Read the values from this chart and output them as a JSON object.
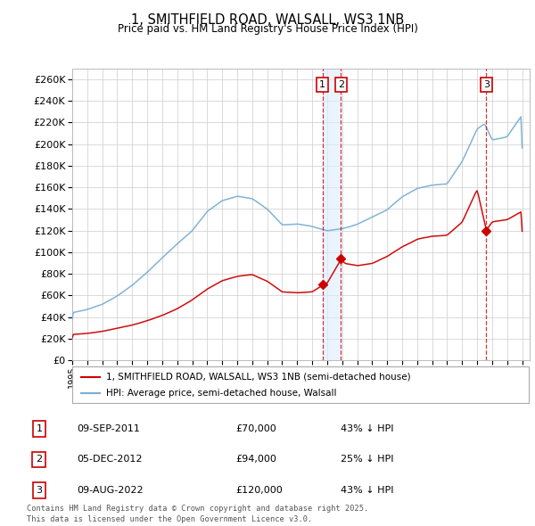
{
  "title": "1, SMITHFIELD ROAD, WALSALL, WS3 1NB",
  "subtitle": "Price paid vs. HM Land Registry's House Price Index (HPI)",
  "ylim": [
    0,
    270000
  ],
  "yticks": [
    0,
    20000,
    40000,
    60000,
    80000,
    100000,
    120000,
    140000,
    160000,
    180000,
    200000,
    220000,
    240000,
    260000
  ],
  "hpi_color": "#7bafd4",
  "sold_color": "#cc0000",
  "grid_color": "#cccccc",
  "background_color": "#ffffff",
  "legend_entry1": "1, SMITHFIELD ROAD, WALSALL, WS3 1NB (semi-detached house)",
  "legend_entry2": "HPI: Average price, semi-detached house, Walsall",
  "transactions": [
    {
      "num": 1,
      "date": "09-SEP-2011",
      "price": 70000,
      "pct": "43%",
      "dir": "↓",
      "x": 2011.69
    },
    {
      "num": 2,
      "date": "05-DEC-2012",
      "price": 94000,
      "pct": "25%",
      "dir": "↓",
      "x": 2012.92
    },
    {
      "num": 3,
      "date": "09-AUG-2022",
      "price": 120000,
      "pct": "43%",
      "dir": "↓",
      "x": 2022.61
    }
  ],
  "footer": "Contains HM Land Registry data © Crown copyright and database right 2025.\nThis data is licensed under the Open Government Licence v3.0.",
  "hpi_waypoints_x": [
    1995,
    1996,
    1997,
    1998,
    1999,
    2000,
    2001,
    2002,
    2003,
    2004,
    2005,
    2006,
    2007,
    2008,
    2009,
    2010,
    2011,
    2012,
    2013,
    2014,
    2015,
    2016,
    2017,
    2018,
    2019,
    2020,
    2021,
    2022,
    2022.5,
    2023,
    2024,
    2025
  ],
  "hpi_waypoints_y": [
    44000,
    47000,
    52000,
    60000,
    70000,
    82000,
    95000,
    108000,
    120000,
    138000,
    148000,
    152000,
    150000,
    140000,
    125000,
    126000,
    124000,
    120000,
    122000,
    126000,
    133000,
    140000,
    152000,
    160000,
    163000,
    164000,
    185000,
    215000,
    220000,
    205000,
    208000,
    228000
  ],
  "sold_waypoints_x": [
    1995,
    1996,
    1997,
    1998,
    1999,
    2000,
    2001,
    2002,
    2003,
    2004,
    2005,
    2006,
    2007,
    2008,
    2009,
    2010,
    2011.0,
    2011.69,
    2012.0,
    2012.92,
    2013.2,
    2014,
    2015,
    2016,
    2017,
    2018,
    2019,
    2020,
    2021,
    2022.0,
    2022.61,
    2022.7,
    2023,
    2024,
    2025
  ],
  "sold_waypoints_y": [
    24000,
    25000,
    27000,
    30000,
    33000,
    37000,
    42000,
    48000,
    56000,
    66000,
    74000,
    78000,
    80000,
    74000,
    64000,
    63000,
    64000,
    70000,
    72000,
    94000,
    90000,
    88000,
    90000,
    96000,
    105000,
    112000,
    115000,
    116000,
    128000,
    158000,
    120000,
    122000,
    128000,
    130000,
    138000
  ]
}
